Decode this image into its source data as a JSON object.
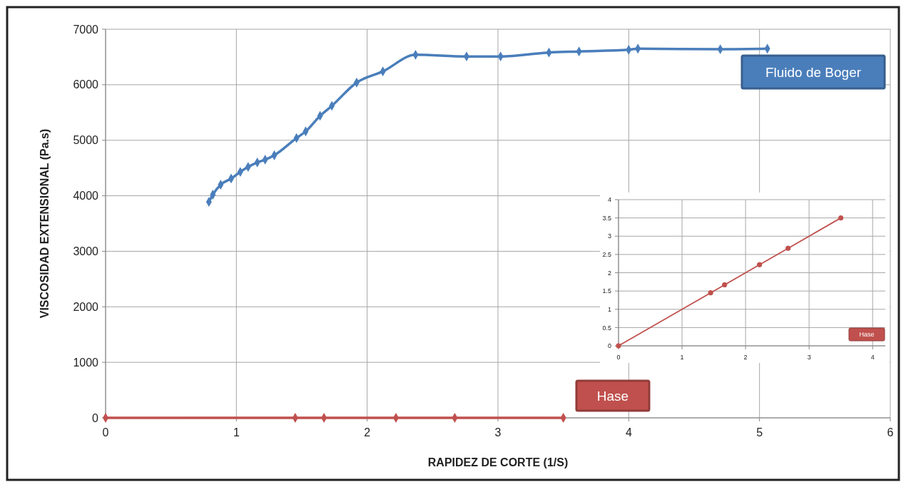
{
  "chart_data": [
    {
      "type": "line",
      "xlabel": "RAPIDEZ DE CORTE (1/S)",
      "ylabel": "VISCOSIDAD EXTENSIONAL (Pa.s)",
      "xlim": [
        0,
        6
      ],
      "xticks": [
        0,
        1,
        2,
        3,
        4,
        5,
        6
      ],
      "ylim": [
        0,
        7000
      ],
      "yticks": [
        0,
        1000,
        2000,
        3000,
        4000,
        5000,
        6000,
        7000
      ],
      "grid": true,
      "legend": false,
      "marker": "diamond",
      "series": [
        {
          "name": "Fluido de Boger",
          "color": "#4a7ebb",
          "x": [
            0.79,
            0.82,
            0.88,
            0.96,
            1.03,
            1.09,
            1.16,
            1.22,
            1.29,
            1.46,
            1.53,
            1.64,
            1.73,
            1.92,
            2.12,
            2.37,
            2.76,
            3.02,
            3.39,
            3.62,
            4.0,
            4.07,
            4.7,
            5.06
          ],
          "values": [
            3890,
            4020,
            4200,
            4310,
            4430,
            4520,
            4600,
            4650,
            4730,
            5040,
            5160,
            5440,
            5620,
            6040,
            6240,
            6540,
            6510,
            6510,
            6580,
            6600,
            6630,
            6650,
            6640,
            6650
          ]
        },
        {
          "name": "Hase",
          "color": "#c0504d",
          "x": [
            0,
            1.45,
            1.67,
            2.22,
            2.67,
            3.5
          ],
          "values": [
            0,
            0,
            0,
            0,
            0,
            0
          ]
        }
      ]
    },
    {
      "type": "line",
      "xlim": [
        0,
        4.2
      ],
      "xticks": [
        0,
        1,
        2,
        3,
        4
      ],
      "ylim": [
        0,
        4
      ],
      "yticks": [
        0,
        0.5,
        1,
        1.5,
        2,
        2.5,
        3,
        3.5,
        4
      ],
      "grid": true,
      "legend": false,
      "marker": "circle",
      "series": [
        {
          "name": "Hase",
          "color": "#c0504d",
          "x": [
            0,
            1.45,
            1.67,
            2.22,
            2.67,
            3.5
          ],
          "values": [
            0,
            1.45,
            1.67,
            2.22,
            2.67,
            3.5
          ]
        }
      ]
    }
  ]
}
